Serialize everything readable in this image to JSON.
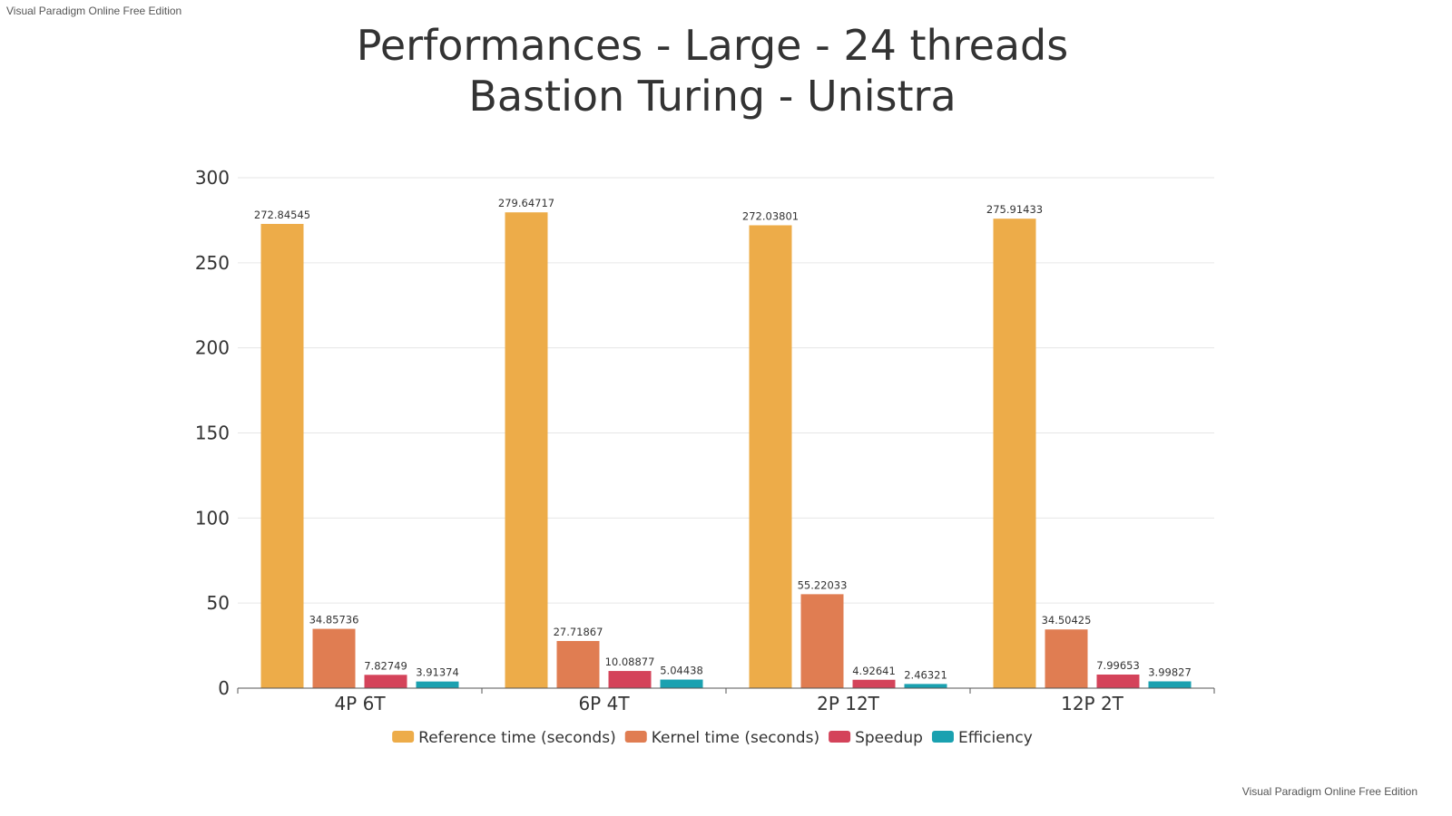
{
  "watermark": "Visual Paradigm Online Free Edition",
  "chart_data": {
    "type": "bar",
    "title": [
      "Performances - Large - 24 threads",
      "Bastion Turing - Unistra"
    ],
    "categories": [
      "4P 6T",
      "6P 4T",
      "2P 12T",
      "12P 2T"
    ],
    "series": [
      {
        "name": "Reference time (seconds)",
        "color": "#EDAC49",
        "values": [
          272.84545,
          279.64717,
          272.03801,
          275.91433
        ]
      },
      {
        "name": "Kernel time (seconds)",
        "color": "#E07D52",
        "values": [
          34.85736,
          27.71867,
          55.22033,
          34.50425
        ]
      },
      {
        "name": "Speedup",
        "color": "#D4435A",
        "values": [
          7.82749,
          10.08877,
          4.92641,
          7.99653
        ]
      },
      {
        "name": "Efficiency",
        "color": "#1AA1B0",
        "values": [
          3.91374,
          5.04438,
          2.46321,
          3.99827
        ]
      }
    ],
    "yticks": [
      "0",
      "50",
      "100",
      "150",
      "200",
      "250",
      "300"
    ],
    "ylim": [
      0,
      300
    ],
    "grid": true,
    "legend": "bottom"
  }
}
